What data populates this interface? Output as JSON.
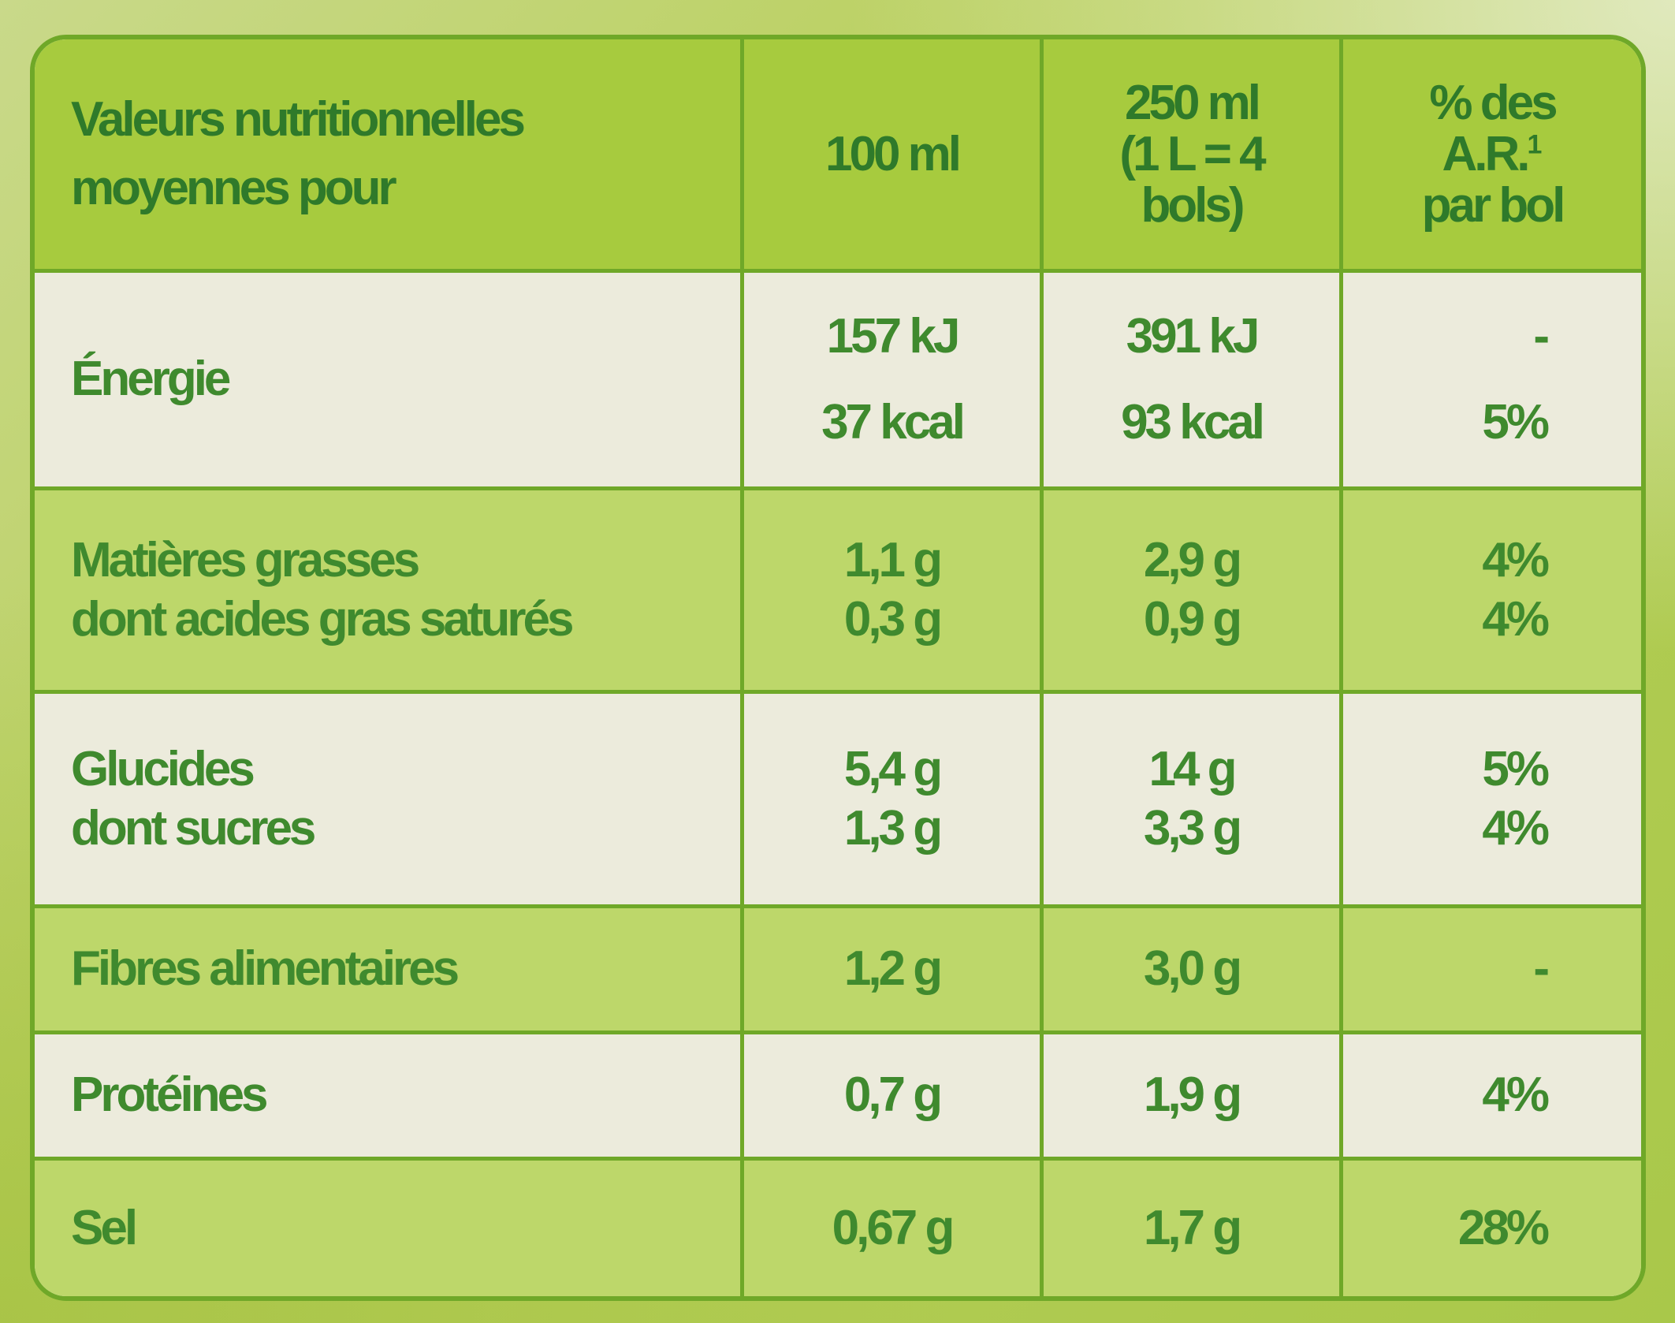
{
  "table": {
    "header": {
      "label_lines": [
        "Valeurs nutritionnelles",
        "moyennes pour"
      ],
      "col_100ml": "100 ml",
      "col_250ml_lines": [
        "250 ml",
        "(1 L = 4",
        "bols)"
      ],
      "col_ar_lines": [
        "% des",
        "A.R.",
        "par bol"
      ],
      "col_ar_footnote": "1"
    },
    "rows": [
      {
        "label": "Énergie",
        "per100": [
          "157 kJ",
          "37 kcal"
        ],
        "per250": [
          "391 kJ",
          "93 kcal"
        ],
        "ar": [
          "-",
          "5%"
        ]
      },
      {
        "label": [
          "Matières grasses",
          "dont acides gras saturés"
        ],
        "per100": [
          "1,1 g",
          "0,3 g"
        ],
        "per250": [
          "2,9 g",
          "0,9 g"
        ],
        "ar": [
          "4%",
          "4%"
        ]
      },
      {
        "label": [
          "Glucides",
          "dont sucres"
        ],
        "per100": [
          "5,4 g",
          "1,3 g"
        ],
        "per250": [
          "14 g",
          "3,3 g"
        ],
        "ar": [
          "5%",
          "4%"
        ]
      },
      {
        "label": "Fibres alimentaires",
        "per100": "1,2 g",
        "per250": "3,0 g",
        "ar": "-"
      },
      {
        "label": "Protéines",
        "per100": "0,7 g",
        "per250": "1,9 g",
        "ar": "4%"
      },
      {
        "label": "Sel",
        "per100": "0,67 g",
        "per250": "1,7 g",
        "ar": "28%"
      }
    ]
  },
  "colors": {
    "border": "#6fa828",
    "text": "#3f8a2e",
    "header_bg": "#a7cb3e",
    "band_green": "#bdd76a",
    "band_light": "#ecebdc"
  }
}
